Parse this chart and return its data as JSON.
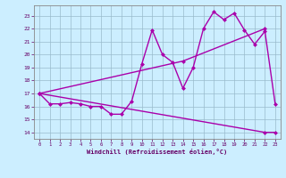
{
  "xlabel": "Windchill (Refroidissement éolien,°C)",
  "bg_color": "#cceeff",
  "line_color": "#aa00aa",
  "grid_color": "#99bbcc",
  "xlim": [
    -0.5,
    23.5
  ],
  "ylim": [
    13.5,
    23.8
  ],
  "xticks": [
    0,
    1,
    2,
    3,
    4,
    5,
    6,
    7,
    8,
    9,
    10,
    11,
    12,
    13,
    14,
    15,
    16,
    17,
    18,
    19,
    20,
    21,
    22,
    23
  ],
  "yticks": [
    14,
    15,
    16,
    17,
    18,
    19,
    20,
    21,
    22,
    23
  ],
  "line1_x": [
    0,
    1,
    2,
    3,
    4,
    5,
    6,
    7,
    8,
    9,
    10,
    11,
    12,
    13,
    14,
    15,
    16,
    17,
    18,
    19,
    20,
    21,
    22,
    23
  ],
  "line1_y": [
    17,
    16.2,
    16.2,
    16.3,
    16.2,
    16.0,
    16.0,
    15.4,
    15.4,
    16.4,
    19.3,
    21.9,
    20.0,
    19.4,
    17.4,
    19.0,
    22.0,
    23.3,
    22.7,
    23.2,
    21.9,
    20.8,
    21.8,
    16.2
  ],
  "line2_x": [
    0,
    14,
    22
  ],
  "line2_y": [
    17,
    19.5,
    22.0
  ],
  "line3_x": [
    0,
    22,
    23
  ],
  "line3_y": [
    17,
    14.0,
    14.0
  ],
  "markersize": 2.5,
  "linewidth": 1.0
}
